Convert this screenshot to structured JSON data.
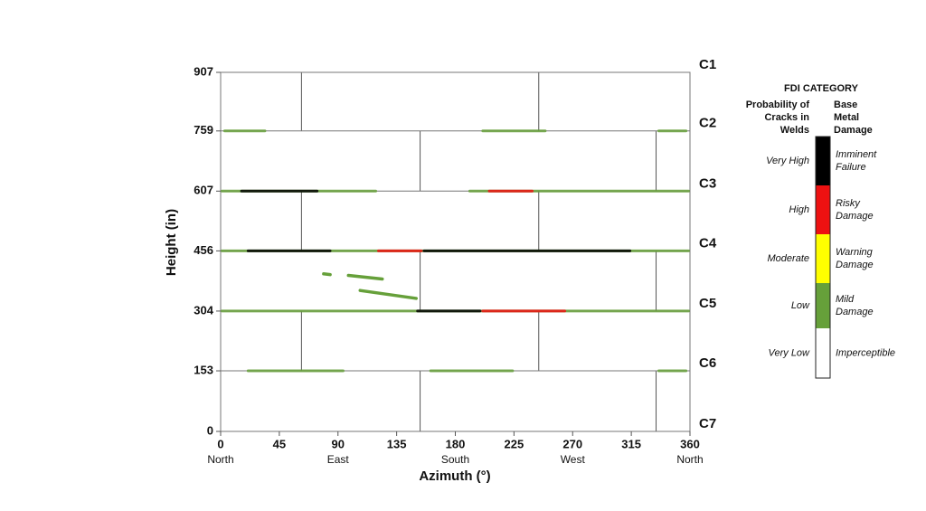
{
  "chart_data": {
    "type": "shell_map",
    "x_label": "Azimuth (°)",
    "y_label": "Height (in)",
    "xlim": [
      0,
      360
    ],
    "ylim": [
      0,
      907
    ],
    "xticks": [
      0,
      45,
      90,
      135,
      180,
      225,
      270,
      315,
      360
    ],
    "yticks": [
      0,
      153,
      304,
      456,
      607,
      759,
      907
    ],
    "directions": [
      {
        "azimuth": 0,
        "label": "North"
      },
      {
        "azimuth": 90,
        "label": "East"
      },
      {
        "azimuth": 180,
        "label": "South"
      },
      {
        "azimuth": 270,
        "label": "West"
      },
      {
        "azimuth": 360,
        "label": "North"
      }
    ],
    "courses": [
      {
        "label": "C1",
        "height": 907
      },
      {
        "label": "C2",
        "height": 759
      },
      {
        "label": "C3",
        "height": 607
      },
      {
        "label": "C4",
        "height": 456
      },
      {
        "label": "C5",
        "height": 304
      },
      {
        "label": "C6",
        "height": 153
      },
      {
        "label": "C7",
        "height": 0
      }
    ],
    "seams": [
      {
        "bottom": 759,
        "top": 907,
        "azimuths": [
          62,
          244
        ]
      },
      {
        "bottom": 607,
        "top": 759,
        "azimuths": [
          153,
          334
        ]
      },
      {
        "bottom": 456,
        "top": 607,
        "azimuths": [
          62,
          244
        ]
      },
      {
        "bottom": 304,
        "top": 456,
        "azimuths": [
          153,
          334
        ]
      },
      {
        "bottom": 153,
        "top": 304,
        "azimuths": [
          62,
          244
        ]
      },
      {
        "bottom": 0,
        "top": 153,
        "azimuths": [
          153,
          334
        ]
      }
    ],
    "weld_damage": [
      {
        "height": 759,
        "from": 2,
        "to": 35,
        "category": 3
      },
      {
        "height": 759,
        "from": 200,
        "to": 250,
        "category": 3
      },
      {
        "height": 759,
        "from": 335,
        "to": 358,
        "category": 3
      },
      {
        "height": 607,
        "from": 0,
        "to": 120,
        "category": 3
      },
      {
        "height": 607,
        "from": 15,
        "to": 75,
        "category": 0
      },
      {
        "height": 607,
        "from": 190,
        "to": 360,
        "category": 3
      },
      {
        "height": 607,
        "from": 205,
        "to": 240,
        "category": 1
      },
      {
        "height": 456,
        "from": 0,
        "to": 360,
        "category": 3
      },
      {
        "height": 456,
        "from": 20,
        "to": 85,
        "category": 0
      },
      {
        "height": 456,
        "from": 155,
        "to": 315,
        "category": 0
      },
      {
        "height": 456,
        "from": 120,
        "to": 155,
        "category": 1
      },
      {
        "height": 304,
        "from": 0,
        "to": 360,
        "category": 3
      },
      {
        "height": 304,
        "from": 150,
        "to": 200,
        "category": 0
      },
      {
        "height": 304,
        "from": 200,
        "to": 265,
        "category": 1
      },
      {
        "height": 153,
        "from": 20,
        "to": 95,
        "category": 3
      },
      {
        "height": 153,
        "from": 160,
        "to": 225,
        "category": 3
      },
      {
        "height": 153,
        "from": 335,
        "to": 358,
        "category": 3
      }
    ],
    "cracks": [
      {
        "from": 79,
        "to": 84,
        "height_from": 398,
        "height_to": 396,
        "category": 3
      },
      {
        "from": 98,
        "to": 124,
        "height_from": 394,
        "height_to": 385,
        "category": 3
      },
      {
        "from": 107,
        "to": 150,
        "height_from": 356,
        "height_to": 336,
        "category": 3
      }
    ],
    "legend": {
      "title": "FDI CATEGORY",
      "weld_header": [
        "Probability of",
        "Cracks in",
        "Welds"
      ],
      "metal_header": [
        "Base",
        "Metal",
        "Damage"
      ],
      "categories": [
        {
          "weld": "Very High",
          "metal": [
            "Imminent",
            "Failure"
          ],
          "color": "#000000"
        },
        {
          "weld": "High",
          "metal": [
            "Risky",
            "Damage"
          ],
          "color": "#ee1111"
        },
        {
          "weld": "Moderate",
          "metal": [
            "Warning",
            "Damage"
          ],
          "color": "#ffff00"
        },
        {
          "weld": "Low",
          "metal": [
            "Mild",
            "Damage"
          ],
          "color": "#66a03a"
        },
        {
          "weld": "Very Low",
          "metal": [
            "Imperceptible"
          ],
          "color": "#ffffff"
        }
      ]
    }
  }
}
